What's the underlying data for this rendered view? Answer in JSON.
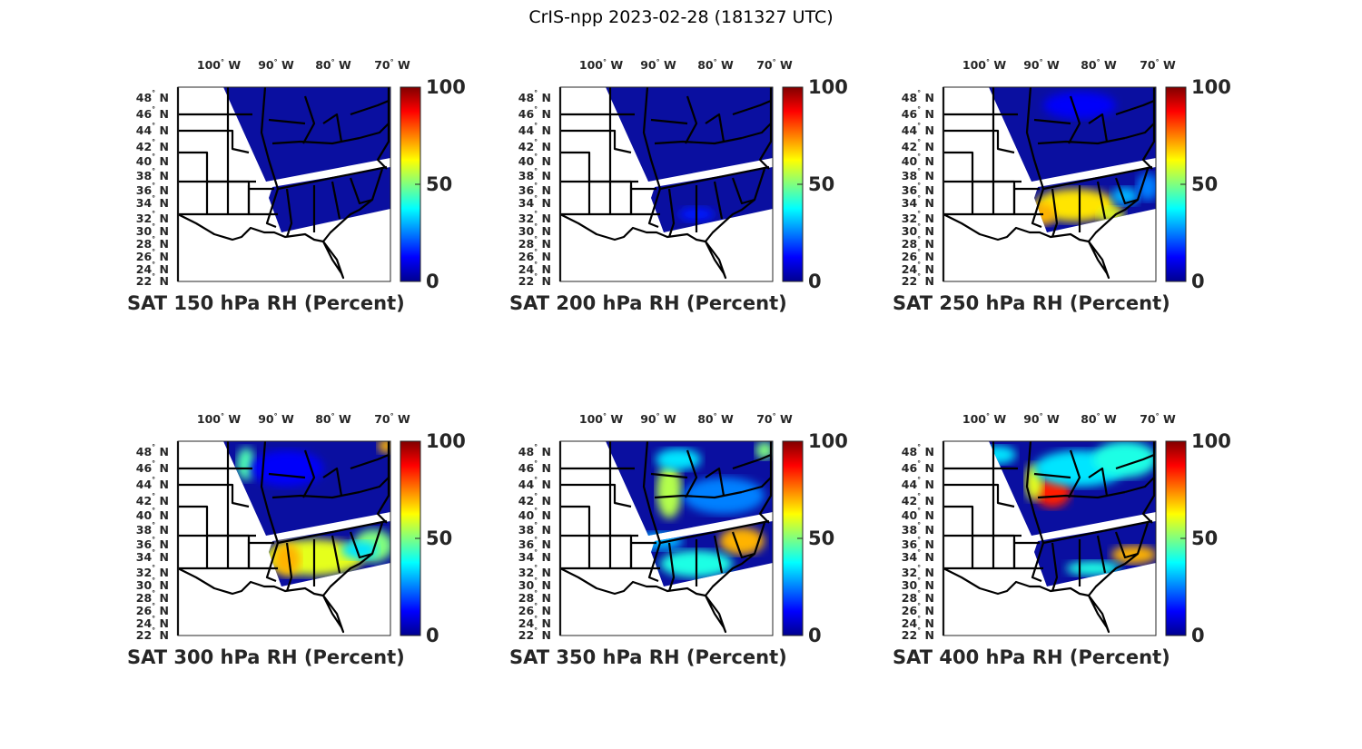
{
  "title": "CrIS-npp 2023-02-28 (181327 UTC)",
  "colors": {
    "state_lines": "#000000",
    "swath_base": "#0a0fa0"
  },
  "chart_data": {
    "type": "heatmap",
    "panels": [
      {
        "title": "SAT 150 hPa RH (Percent)",
        "level_hPa": 150
      },
      {
        "title": "SAT 200 hPa RH (Percent)",
        "level_hPa": 200
      },
      {
        "title": "SAT 250 hPa RH (Percent)",
        "level_hPa": 250
      },
      {
        "title": "SAT 300 hPa RH (Percent)",
        "level_hPa": 300
      },
      {
        "title": "SAT 350 hPa RH (Percent)",
        "level_hPa": 350
      },
      {
        "title": "SAT 400 hPa RH (Percent)",
        "level_hPa": 400
      }
    ],
    "lon_ticks": [
      "100° W",
      "90° W",
      "80° W",
      "70° W"
    ],
    "lat_ticks": [
      "48° N",
      "46° N",
      "44° N",
      "42° N",
      "40° N",
      "38° N",
      "36° N",
      "34° N",
      "32° N",
      "30° N",
      "28° N",
      "26° N",
      "24° N",
      "22° N"
    ],
    "colorbar": {
      "ticks": [
        "100",
        "50",
        "0"
      ],
      "range": [
        0,
        100
      ],
      "colormap": "jet"
    }
  }
}
